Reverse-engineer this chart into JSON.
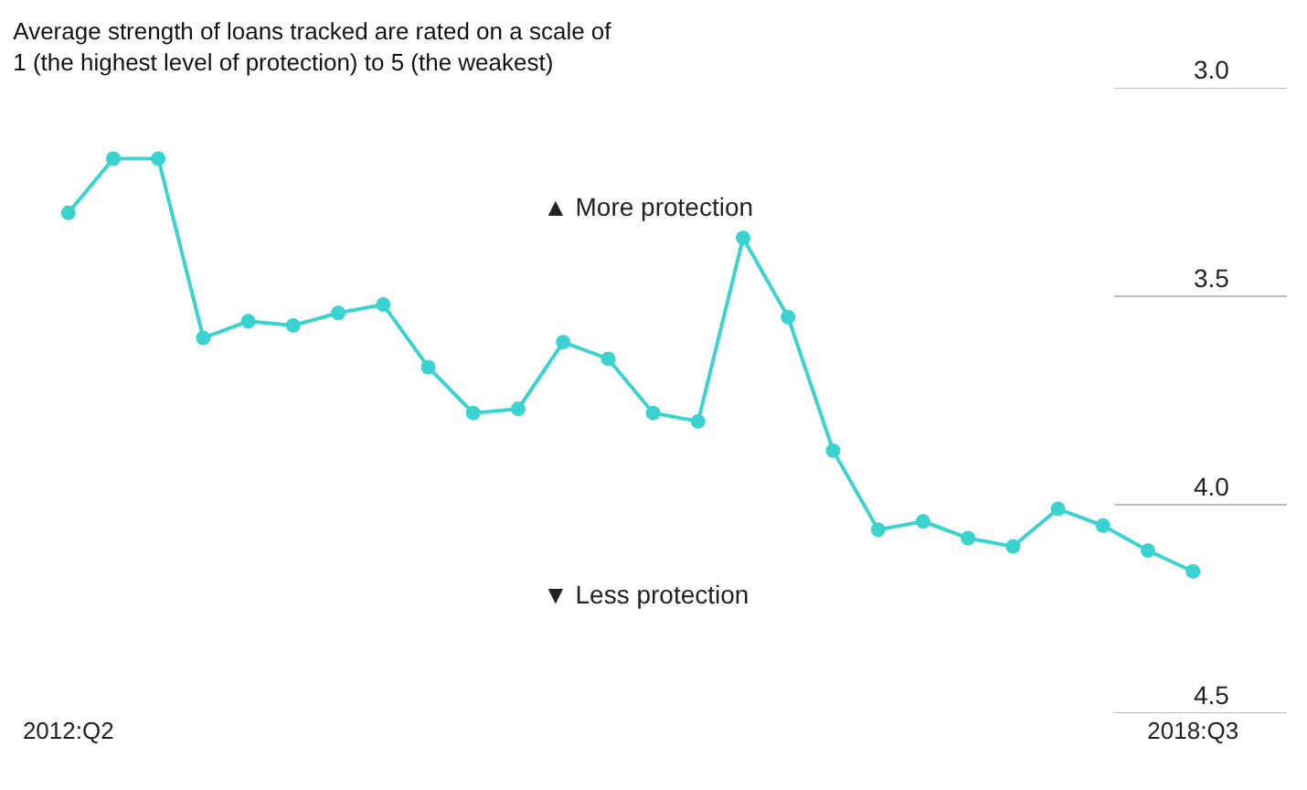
{
  "chart_data": {
    "type": "line",
    "title": "Average strength of loans tracked are rated on a scale of\n1 (the highest level of protection) to 5 (the weakest)",
    "categories": [
      "2012:Q2",
      null,
      null,
      null,
      null,
      null,
      null,
      null,
      null,
      null,
      null,
      null,
      null,
      null,
      null,
      null,
      null,
      null,
      null,
      null,
      null,
      null,
      null,
      null,
      null,
      "2018:Q3"
    ],
    "series": [
      {
        "color": "#3ad3cf",
        "values": [
          3.3,
          3.17,
          3.17,
          3.6,
          3.56,
          3.57,
          3.54,
          3.52,
          3.67,
          3.78,
          3.77,
          3.61,
          3.65,
          3.78,
          3.8,
          3.36,
          3.55,
          3.87,
          4.06,
          4.04,
          4.08,
          4.1,
          4.01,
          4.05,
          4.11,
          4.16
        ]
      }
    ],
    "ylim": [
      4.5,
      3.0
    ],
    "yticks": [
      {
        "value": 3.0,
        "label": "3.0"
      },
      3.5,
      {
        "value": 4.0,
        "label": "4.0"
      },
      4.5
    ],
    "annotations": [
      "▲ More protection",
      "▼ Less protection"
    ],
    "marker": "circle",
    "line_style": "solid"
  }
}
